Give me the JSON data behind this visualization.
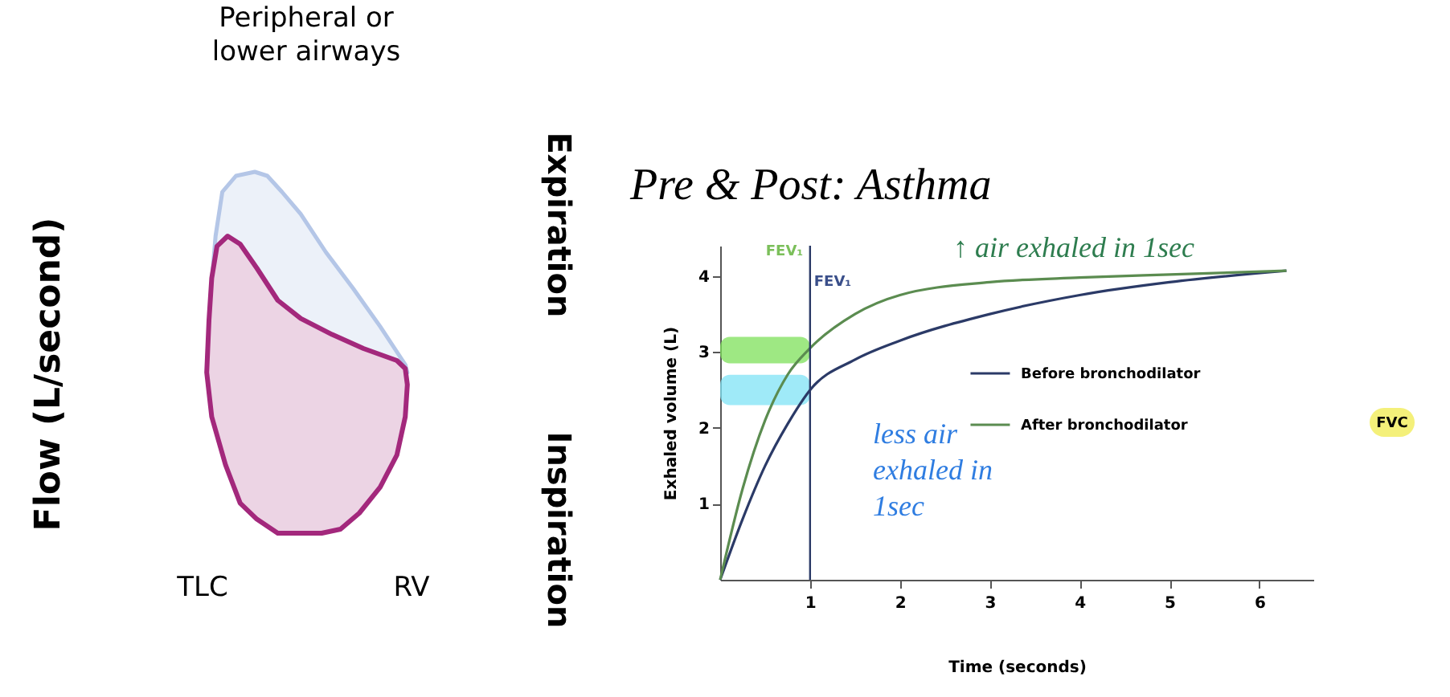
{
  "chart_data": [
    {
      "type": "other",
      "title": "Peripheral or lower airways",
      "ylabel": "Flow (L/second)",
      "annotations": [
        "TLC",
        "RV",
        "Expiration",
        "Inspiration"
      ]
    },
    {
      "type": "line",
      "title": "Pre & Post: Asthma",
      "xlabel": "Time (seconds)",
      "ylabel": "Exhaled volume (L)",
      "annotations": [
        "FEV₁",
        "FEV₁",
        "↑ air exhaled in 1sec",
        "less air exhaled in 1sec",
        "FVC"
      ],
      "xlim": [
        0,
        6.6
      ],
      "xticks": [
        1,
        2,
        3,
        4,
        5,
        6
      ],
      "ylim": [
        0,
        4.4
      ],
      "yticks": [
        1,
        2,
        3,
        4
      ],
      "grid": false,
      "legend": "right",
      "ref_lines": [
        {
          "axis": "x",
          "value": 1,
          "color": "#2b3a67"
        }
      ],
      "bands": [
        {
          "axis": "y",
          "from": 2.85,
          "to": 3.2,
          "color": "#7ee05a"
        },
        {
          "axis": "y",
          "from": 2.3,
          "to": 2.7,
          "color": "#7fe3f5"
        }
      ],
      "x": [
        0,
        0.25,
        0.5,
        0.75,
        1,
        1.5,
        2,
        3,
        4,
        5,
        6.3
      ],
      "series": [
        {
          "name": "Before bronchodilator",
          "color": "#2b3a67",
          "values": [
            0,
            0.8,
            1.5,
            2.05,
            2.5,
            2.9,
            3.15,
            3.5,
            3.75,
            3.92,
            4.07
          ]
        },
        {
          "name": "After bronchodilator",
          "color": "#5b8c50",
          "values": [
            0,
            1.2,
            2.1,
            2.7,
            3.05,
            3.5,
            3.75,
            3.92,
            3.98,
            4.02,
            4.07
          ]
        }
      ]
    }
  ]
}
